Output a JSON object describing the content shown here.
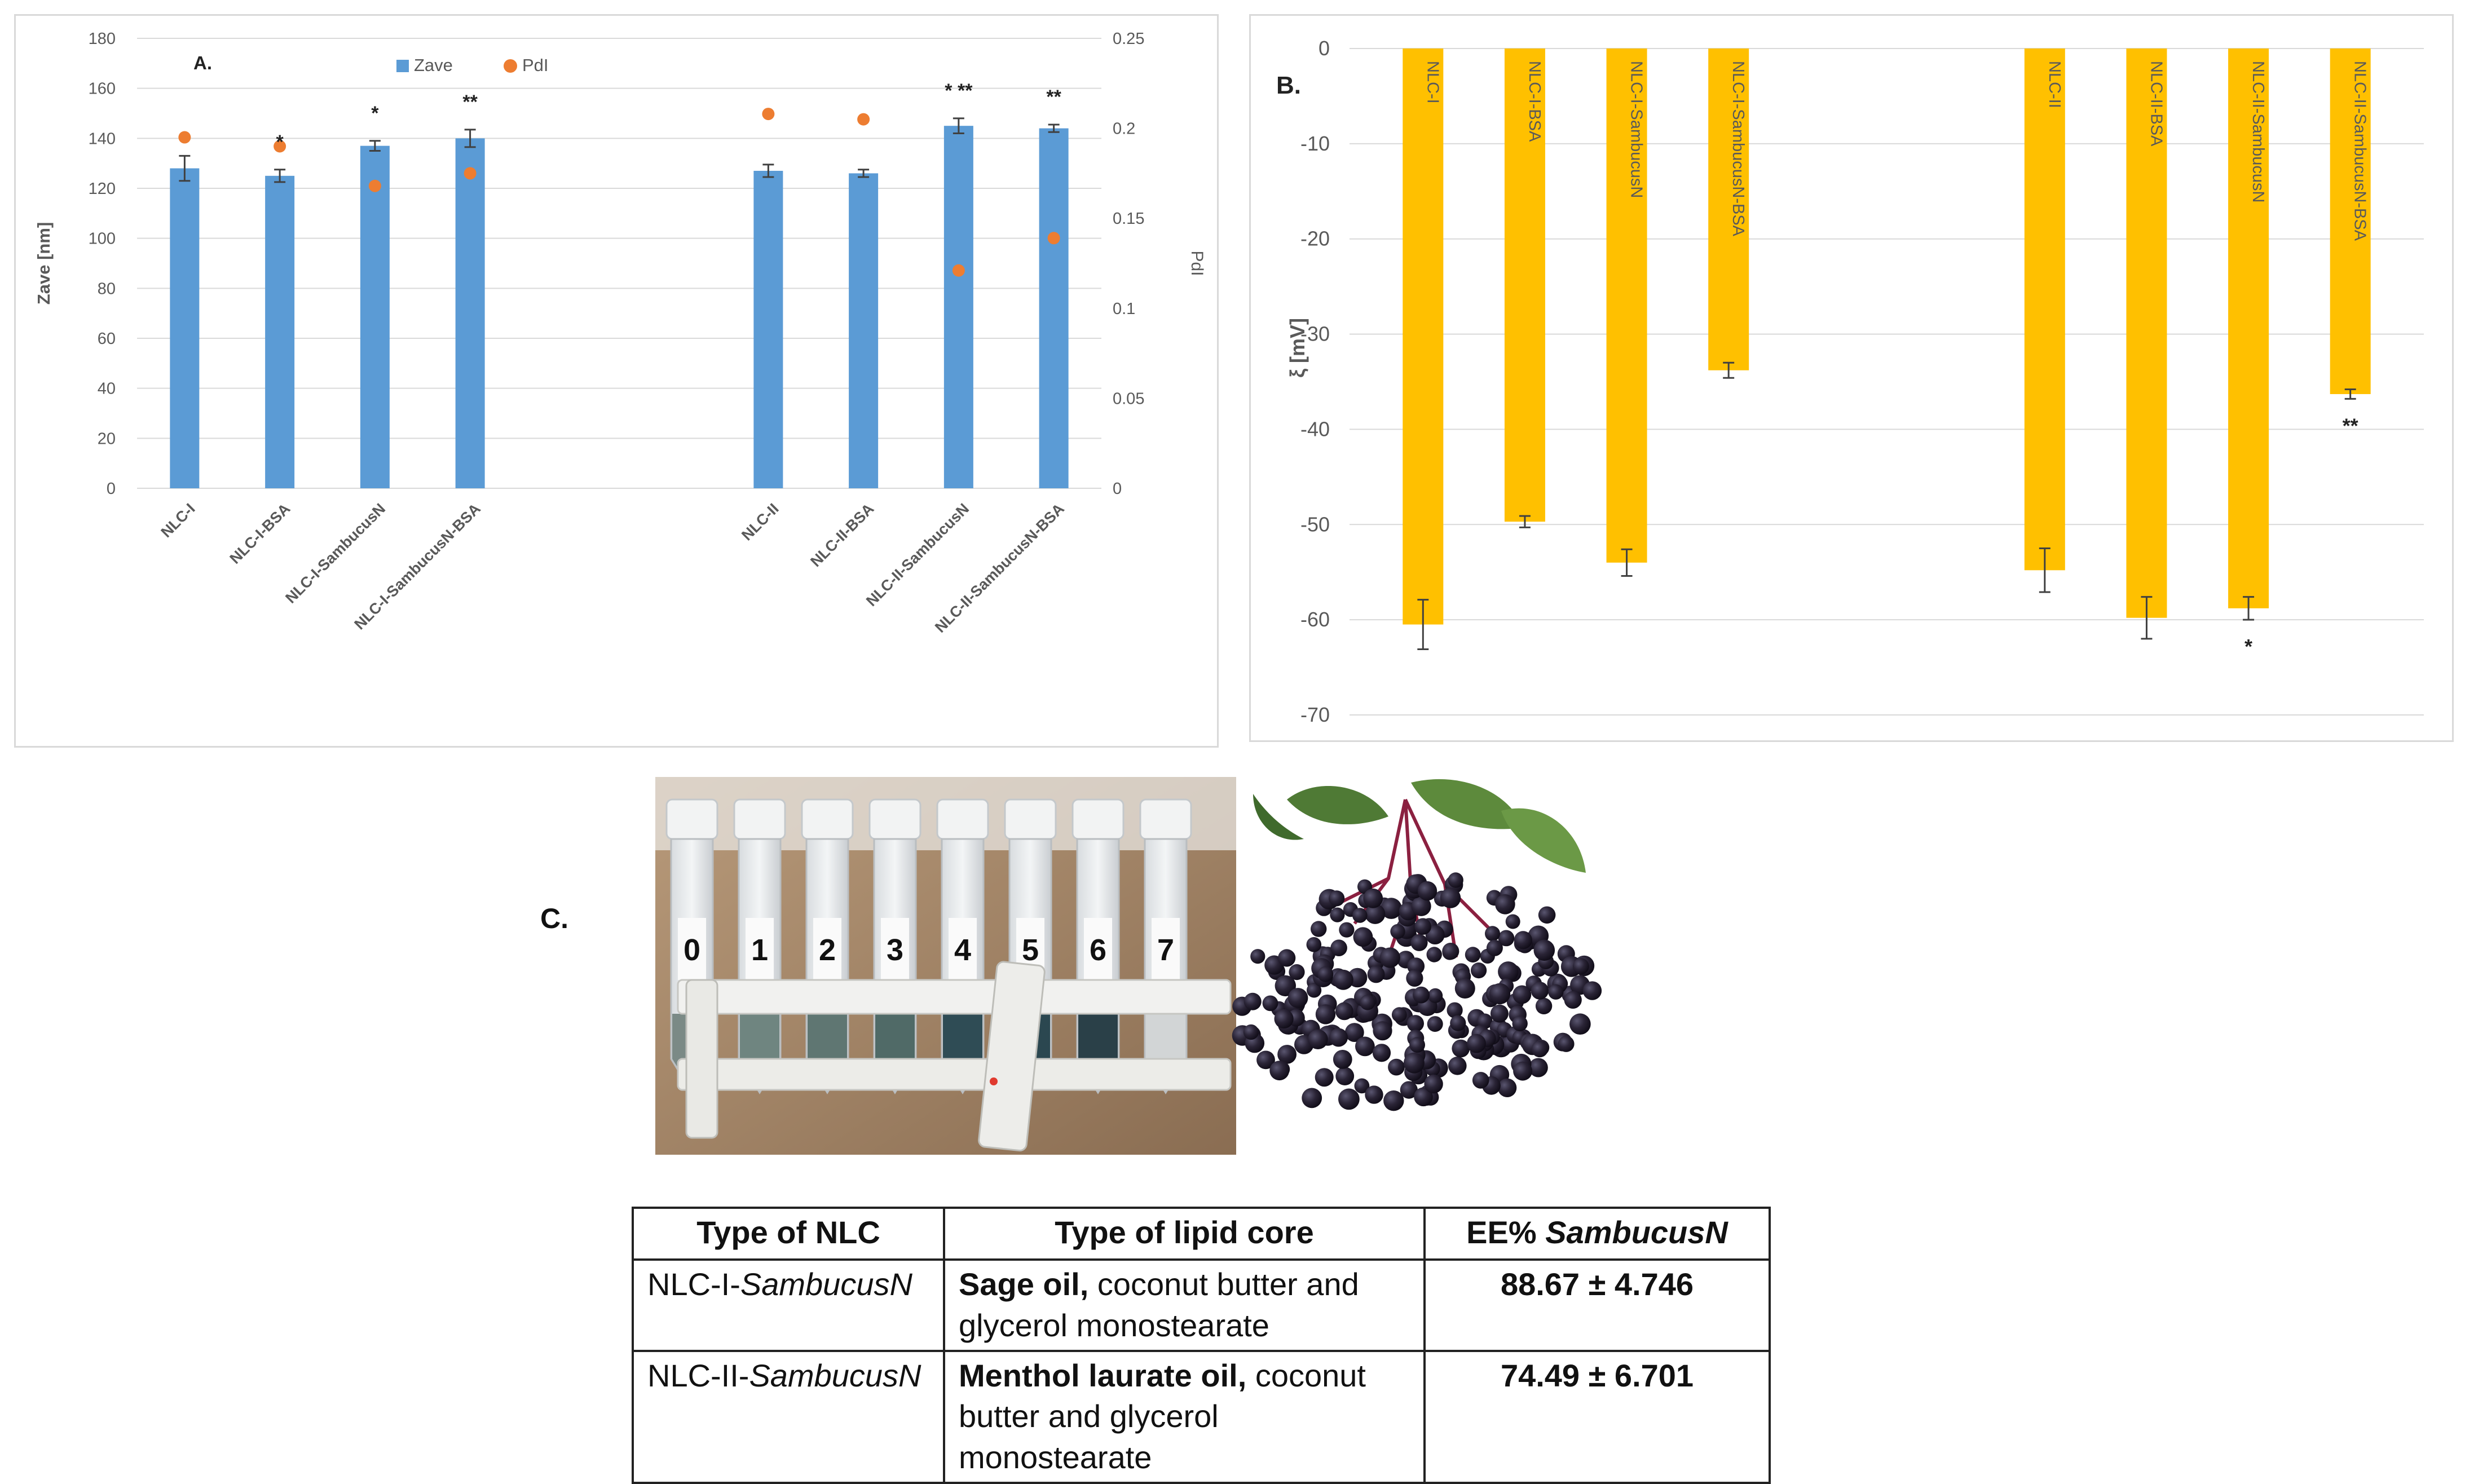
{
  "chart_data": [
    {
      "type": "bar",
      "panel_label": "A.",
      "categories": [
        "NLC-I",
        "NLC-I-BSA",
        "NLC-I-SambucusN",
        "NLC-I-SambucusN-BSA",
        "NLC-II",
        "NLC-II-BSA",
        "NLC-II-SambucusN",
        "NLC-II-SambucusN-BSA"
      ],
      "groups": [
        [
          0,
          1,
          2,
          3
        ],
        [
          4,
          5,
          6,
          7
        ]
      ],
      "series": [
        {
          "name": "Zave",
          "kind": "bar",
          "axis": "left",
          "color": "#5B9BD5",
          "values": [
            128,
            125,
            137,
            140,
            127,
            126,
            145,
            144
          ],
          "errors": [
            5,
            2.5,
            2,
            3.5,
            2.5,
            1.5,
            3,
            1.5
          ]
        },
        {
          "name": "PdI",
          "kind": "scatter",
          "axis": "right",
          "color": "#ED7D31",
          "values": [
            0.195,
            0.19,
            0.168,
            0.175,
            0.208,
            0.205,
            0.121,
            0.139
          ]
        }
      ],
      "significance": [
        "",
        "*",
        "*",
        "**",
        "",
        "",
        "* **",
        "**"
      ],
      "ylabel": "Zave [nm]",
      "ylim": [
        0,
        180
      ],
      "yticks": [
        0,
        20,
        40,
        60,
        80,
        100,
        120,
        140,
        160,
        180
      ],
      "y2label": "PdI",
      "y2lim": [
        0,
        0.25
      ],
      "y2ticks": [
        "0",
        "0.05",
        "0.1",
        "0.15",
        "0.2",
        "0.25"
      ],
      "grid": true,
      "legend": "top-center"
    },
    {
      "type": "bar",
      "panel_label": "B.",
      "categories": [
        "NLC-I",
        "NLC-I-BSA",
        "NLC-I-SambucusN",
        "NLC-I-SambucusN-BSA",
        "NLC-II",
        "NLC-II-BSA",
        "NLC-II-SambucusN",
        "NLC-II-SambucusN-BSA"
      ],
      "groups": [
        [
          0,
          1,
          2,
          3
        ],
        [
          4,
          5,
          6,
          7
        ]
      ],
      "series": [
        {
          "name": "",
          "kind": "bar",
          "color": "#FFC000",
          "values": [
            -60.5,
            -49.7,
            -54,
            -33.8,
            -54.8,
            -59.8,
            -58.8,
            -36.3
          ],
          "errors": [
            2.6,
            0.6,
            1.4,
            0.8,
            2.3,
            2.2,
            1.2,
            0.5
          ]
        }
      ],
      "significance": [
        "",
        "",
        "",
        "",
        "",
        "",
        "*",
        "**"
      ],
      "ylabel": "ξ [mV]",
      "ylim": [
        -70,
        0
      ],
      "yticks": [
        0,
        -10,
        -20,
        -30,
        -40,
        -50,
        -60,
        -70
      ],
      "grid": true
    }
  ],
  "figure_c": {
    "label": "C.",
    "tube_labels": [
      "0",
      "1",
      "2",
      "3",
      "4",
      "5",
      "6",
      "7"
    ],
    "table": {
      "headers": {
        "col1": "Type of NLC",
        "col2": "Type of lipid core",
        "col3_plain": "EE% ",
        "col3_italic": "SambucusN"
      },
      "rows": [
        {
          "nlc_prefix": "NLC-I-",
          "nlc_italic": "SambucusN",
          "core_bold": "Sage oil,",
          "core_rest": " coconut butter and glycerol monostearate",
          "ee": "88.67 ± 4.746"
        },
        {
          "nlc_prefix": "NLC-II-",
          "nlc_italic": "SambucusN",
          "core_bold": "Menthol laurate oil,",
          "core_rest": " coconut butter and glycerol monostearate",
          "ee": "74.49 ± 6.701"
        }
      ]
    }
  },
  "colors": {
    "zave_bar": "#5B9BD5",
    "pdi_point": "#ED7D31",
    "zeta_bar": "#FFC000",
    "gridline": "#d9d9d9",
    "axis_text": "#595959"
  }
}
